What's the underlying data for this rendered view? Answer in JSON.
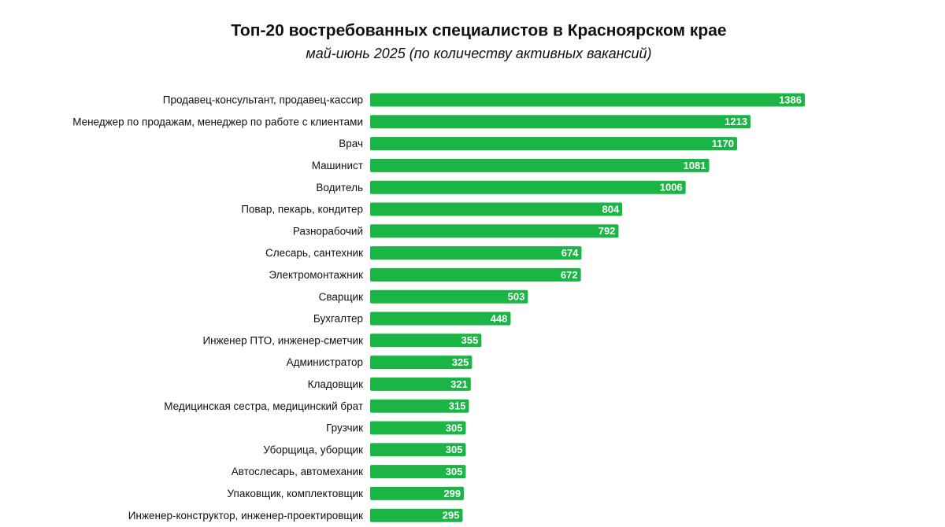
{
  "chart_data": {
    "type": "bar",
    "orientation": "horizontal",
    "title": "Топ-20 востребованных специалистов в Красноярском крае",
    "subtitle": "май-июнь 2025 (по количеству активных вакансий)",
    "categories": [
      "Продавец-консультант, продавец-кассир",
      "Менеджер по продажам, менеджер по работе с клиентами",
      "Врач",
      "Машинист",
      "Водитель",
      "Повар, пекарь, кондитер",
      "Разнорабочий",
      "Слесарь, сантехник",
      "Электромонтажник",
      "Сварщик",
      "Бухгалтер",
      "Инженер ПТО, инженер-сметчик",
      "Администратор",
      "Кладовщик",
      "Медицинская сестра, медицинский брат",
      "Грузчик",
      "Уборщица, уборщик",
      "Автослесарь, автомеханик",
      "Упаковщик, комплектовщик",
      "Инженер-конструктор, инженер-проектировщик"
    ],
    "values": [
      1386,
      1213,
      1170,
      1081,
      1006,
      804,
      792,
      674,
      672,
      503,
      448,
      355,
      325,
      321,
      315,
      305,
      305,
      305,
      299,
      295
    ],
    "color": "#1bb545"
  }
}
